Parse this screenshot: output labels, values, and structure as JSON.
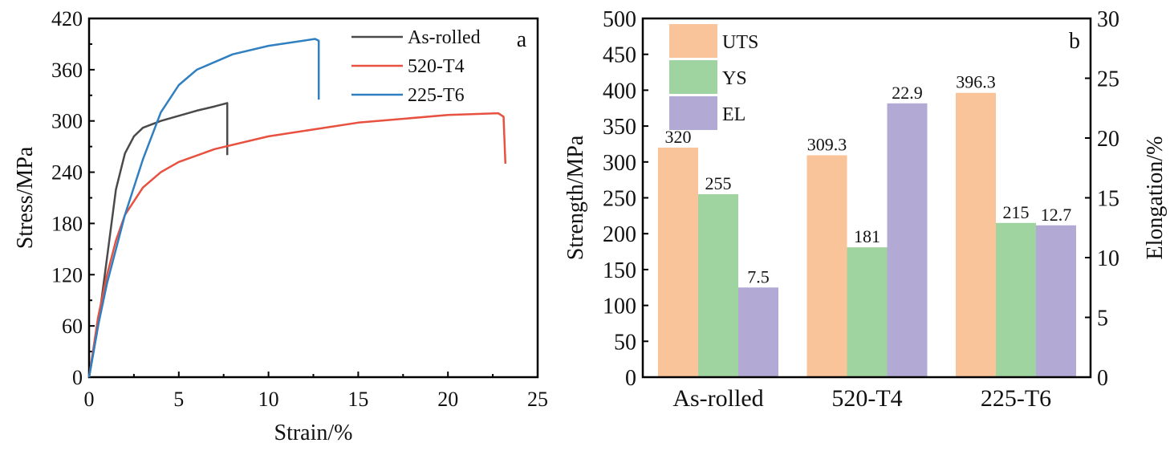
{
  "chart_data": [
    {
      "type": "line",
      "panel_label": "a",
      "xlabel": "Strain/%",
      "ylabel": "Stress/MPa",
      "xlim": [
        0,
        25
      ],
      "ylim": [
        0,
        420
      ],
      "xticks": [
        0,
        5,
        10,
        15,
        20,
        25
      ],
      "yticks": [
        0,
        60,
        120,
        180,
        240,
        300,
        360,
        420
      ],
      "legend_position": "top-right",
      "series": [
        {
          "name": "As-rolled",
          "color": "#4a4a4a",
          "points": [
            [
              0,
              0
            ],
            [
              0.5,
              60
            ],
            [
              1,
              140
            ],
            [
              1.5,
              220
            ],
            [
              2,
              262
            ],
            [
              2.5,
              282
            ],
            [
              3,
              292
            ],
            [
              4,
              300
            ],
            [
              5,
              306
            ],
            [
              6,
              312
            ],
            [
              7,
              317
            ],
            [
              7.7,
              321
            ],
            [
              7.7,
              260
            ]
          ]
        },
        {
          "name": "520-T4",
          "color": "#e8503f",
          "points": [
            [
              0,
              0
            ],
            [
              0.5,
              70
            ],
            [
              1,
              120
            ],
            [
              1.5,
              160
            ],
            [
              2,
              190
            ],
            [
              3,
              222
            ],
            [
              4,
              240
            ],
            [
              5,
              252
            ],
            [
              7,
              267
            ],
            [
              10,
              282
            ],
            [
              15,
              298
            ],
            [
              20,
              307
            ],
            [
              22.8,
              309
            ],
            [
              23.1,
              305
            ],
            [
              23.2,
              250
            ]
          ]
        },
        {
          "name": "225-T6",
          "color": "#2f7fc1",
          "points": [
            [
              0,
              0
            ],
            [
              0.5,
              60
            ],
            [
              1,
              110
            ],
            [
              2,
              190
            ],
            [
              3,
              255
            ],
            [
              4,
              310
            ],
            [
              5,
              342
            ],
            [
              6,
              360
            ],
            [
              8,
              378
            ],
            [
              10,
              388
            ],
            [
              12.6,
              396
            ],
            [
              12.8,
              394
            ],
            [
              12.8,
              325
            ]
          ]
        }
      ]
    },
    {
      "type": "bar",
      "panel_label": "b",
      "categories": [
        "As-rolled",
        "520-T4",
        "225-T6"
      ],
      "ylabel": "Strength/MPa",
      "y2label": "Elongation/%",
      "ylim": [
        0,
        500
      ],
      "y2lim": [
        0,
        30
      ],
      "yticks": [
        0,
        50,
        100,
        150,
        200,
        250,
        300,
        350,
        400,
        450,
        500
      ],
      "y2ticks": [
        0,
        5,
        10,
        15,
        20,
        25,
        30
      ],
      "legend_position": "top-left",
      "series": [
        {
          "name": "UTS",
          "axis": "left",
          "color": "#f9c499",
          "values": [
            320,
            309.3,
            396.3
          ],
          "labels": [
            "320",
            "309.3",
            "396.3"
          ]
        },
        {
          "name": "YS",
          "axis": "left",
          "color": "#9fd39f",
          "values": [
            255,
            181,
            215
          ],
          "labels": [
            "255",
            "181",
            "215"
          ]
        },
        {
          "name": "EL",
          "axis": "right",
          "color": "#b3a9d5",
          "values": [
            7.5,
            22.9,
            12.7
          ],
          "labels": [
            "7.5",
            "22.9",
            "12.7"
          ]
        }
      ]
    }
  ]
}
